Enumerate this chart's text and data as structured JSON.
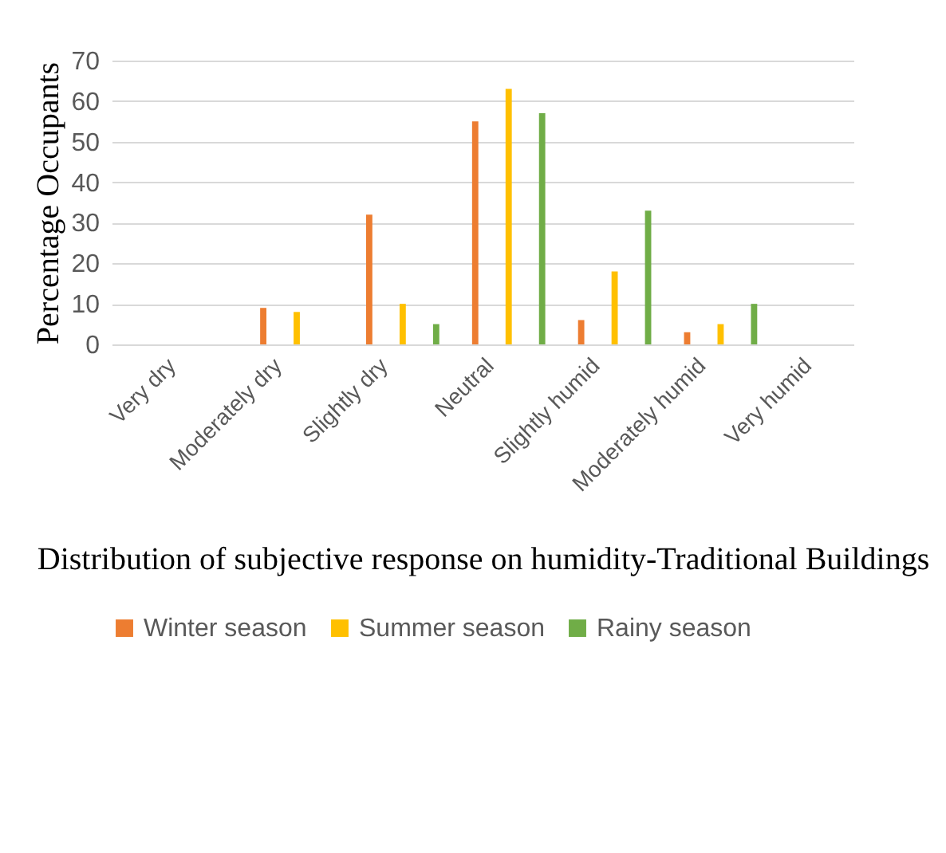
{
  "chart_data": {
    "type": "bar",
    "xlabel": "Distribution of subjective response on\nhumidity-Traditional Buildings",
    "ylabel": "Percentage Occupants",
    "categories": [
      "Very dry",
      "Moderately dry",
      "Slightly dry",
      "Neutral",
      "Slightly humid",
      "Moderately humid",
      "Very humid"
    ],
    "series": [
      {
        "name": "Winter season",
        "color": "#ed7d31",
        "values": [
          0,
          9,
          32,
          55,
          6,
          3,
          0
        ]
      },
      {
        "name": "Summer season",
        "color": "#ffc000",
        "values": [
          0,
          8,
          10,
          63,
          18,
          5,
          0
        ]
      },
      {
        "name": "Rainy season",
        "color": "#70ad47",
        "values": [
          0,
          0,
          5,
          57,
          33,
          10,
          0
        ]
      }
    ],
    "ylim": [
      0,
      70
    ],
    "yticks": [
      0,
      10,
      20,
      30,
      40,
      50,
      60,
      70
    ],
    "grid": "y",
    "legend": "bottom"
  }
}
